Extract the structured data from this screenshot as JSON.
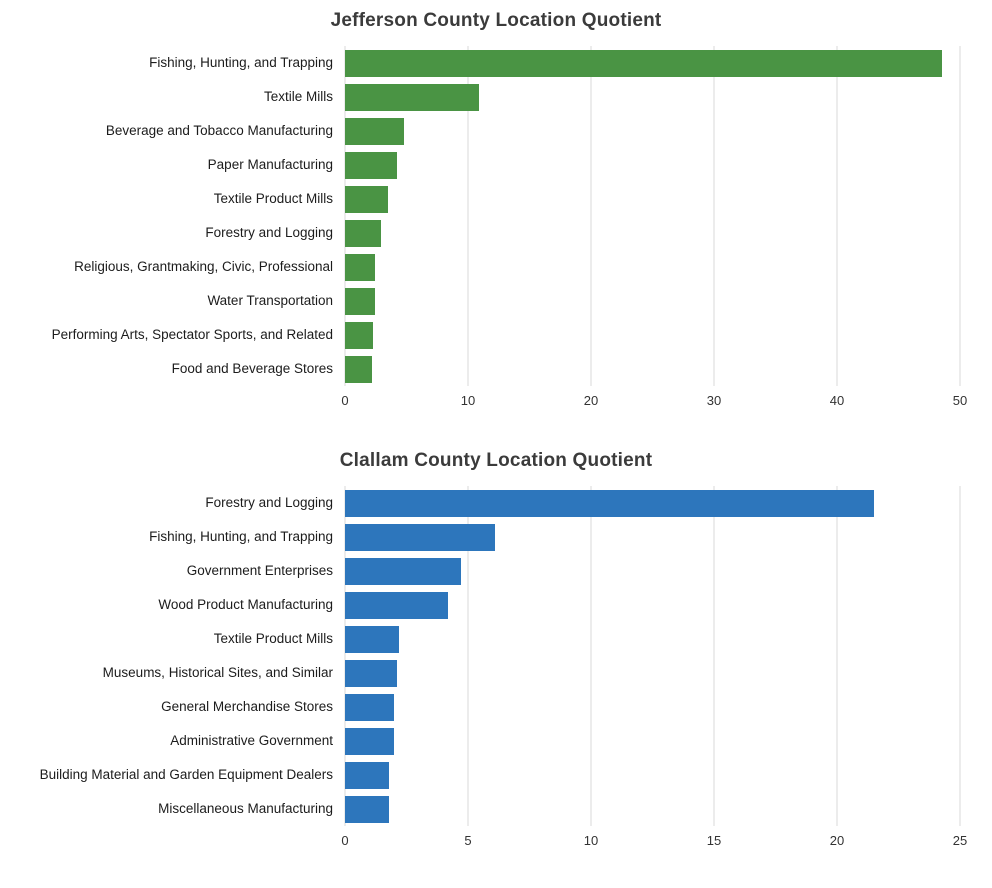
{
  "chart_data": [
    {
      "type": "bar",
      "orientation": "horizontal",
      "title": "Jefferson County Location Quotient",
      "color": "#4a9444",
      "grid": true,
      "xlim": [
        0,
        50
      ],
      "ticks": [
        0,
        10,
        20,
        30,
        40,
        50
      ],
      "categories": [
        "Fishing, Hunting, and Trapping",
        "Textile Mills",
        "Beverage and Tobacco Manufacturing",
        "Paper Manufacturing",
        "Textile Product Mills",
        "Forestry and Logging",
        "Religious, Grantmaking, Civic, Professional",
        "Water Transportation",
        "Performing Arts, Spectator Sports, and Related",
        "Food and Beverage Stores"
      ],
      "values": [
        48.5,
        10.9,
        4.8,
        4.2,
        3.5,
        2.9,
        2.4,
        2.4,
        2.3,
        2.2
      ]
    },
    {
      "type": "bar",
      "orientation": "horizontal",
      "title": "Clallam County Location Quotient",
      "color": "#2d76bc",
      "grid": true,
      "xlim": [
        0,
        25
      ],
      "ticks": [
        0,
        5,
        10,
        15,
        20,
        25
      ],
      "categories": [
        "Forestry and Logging",
        "Fishing, Hunting, and Trapping",
        "Government Enterprises",
        "Wood Product Manufacturing",
        "Textile Product Mills",
        "Museums, Historical Sites, and Similar",
        "General Merchandise Stores",
        "Administrative Government",
        "Building Material and Garden Equipment Dealers",
        "Miscellaneous Manufacturing"
      ],
      "values": [
        21.5,
        6.1,
        4.7,
        4.2,
        2.2,
        2.1,
        2.0,
        2.0,
        1.8,
        1.8
      ]
    }
  ]
}
